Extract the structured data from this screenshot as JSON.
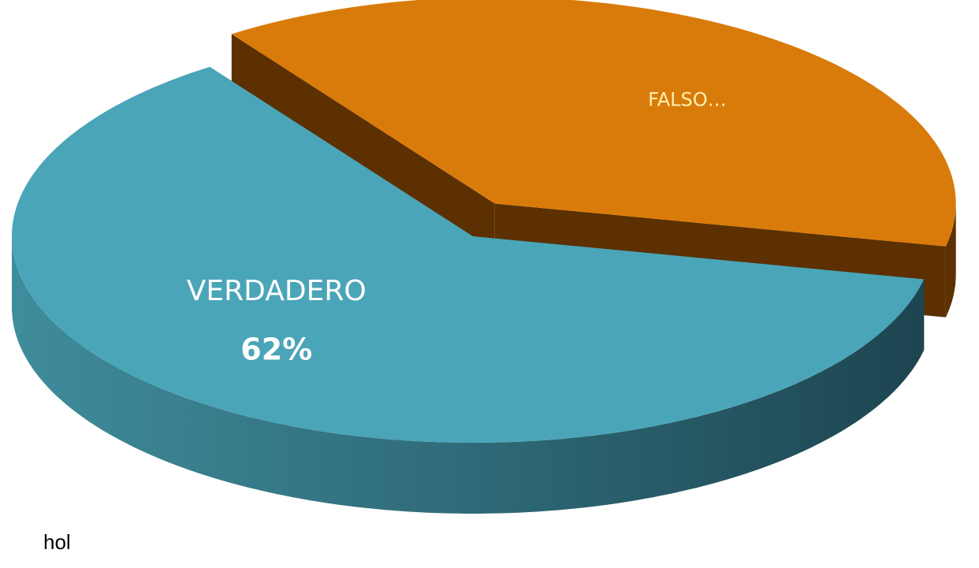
{
  "chart_data": {
    "type": "pie3d",
    "categories": [
      "VERDADERO",
      "FALSO…"
    ],
    "values": [
      62,
      38
    ],
    "value_labels": [
      "62%",
      null
    ],
    "colors": [
      "#4aa5b8",
      "#d97b0a"
    ],
    "annotation": "hol"
  }
}
